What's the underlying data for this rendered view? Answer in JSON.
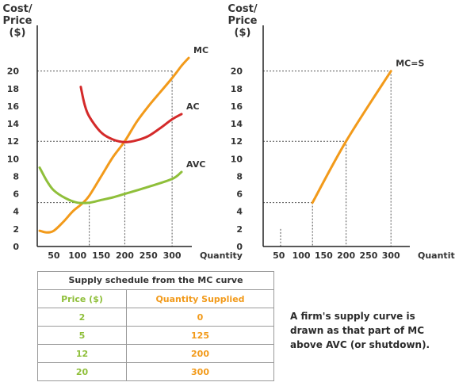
{
  "chart_data": [
    {
      "type": "line",
      "ylabel_lines": [
        "Cost/",
        "Price",
        "($)"
      ],
      "xlabel": "Quantity",
      "yticks": [
        0,
        2,
        4,
        6,
        8,
        10,
        12,
        14,
        16,
        18,
        20
      ],
      "xticks": [
        50,
        100,
        150,
        200,
        250,
        300
      ],
      "xlim": [
        15,
        335
      ],
      "ylim": [
        0,
        22.5
      ],
      "series": [
        {
          "name": "MC",
          "color": "#f29a1a",
          "points": [
            [
              20,
              1.8
            ],
            [
              35,
              1.6
            ],
            [
              50,
              1.8
            ],
            [
              70,
              2.8
            ],
            [
              90,
              4.0
            ],
            [
              110,
              4.9
            ],
            [
              125,
              5.8
            ],
            [
              150,
              8.0
            ],
            [
              175,
              10.2
            ],
            [
              200,
              12.0
            ],
            [
              225,
              14.2
            ],
            [
              250,
              16.0
            ],
            [
              275,
              17.6
            ],
            [
              300,
              19.2
            ],
            [
              320,
              20.6
            ],
            [
              335,
              21.5
            ]
          ]
        },
        {
          "name": "AC",
          "color": "#d42a2a",
          "points": [
            [
              107,
              18.2
            ],
            [
              115,
              16.2
            ],
            [
              125,
              14.8
            ],
            [
              150,
              13.0
            ],
            [
              175,
              12.2
            ],
            [
              200,
              11.9
            ],
            [
              225,
              12.1
            ],
            [
              250,
              12.6
            ],
            [
              275,
              13.5
            ],
            [
              300,
              14.5
            ],
            [
              320,
              15.1
            ]
          ]
        },
        {
          "name": "AVC",
          "color": "#8fbf3a",
          "points": [
            [
              20,
              9.0
            ],
            [
              35,
              7.5
            ],
            [
              50,
              6.4
            ],
            [
              75,
              5.5
            ],
            [
              100,
              5.0
            ],
            [
              125,
              5.0
            ],
            [
              150,
              5.3
            ],
            [
              175,
              5.6
            ],
            [
              200,
              6.0
            ],
            [
              250,
              6.8
            ],
            [
              300,
              7.7
            ],
            [
              320,
              8.5
            ]
          ]
        }
      ],
      "guides": [
        {
          "x": 125,
          "y": 5
        },
        {
          "x": 200,
          "y": 12
        },
        {
          "x": 300,
          "y": 20
        }
      ]
    },
    {
      "type": "line",
      "ylabel_lines": [
        "Cost/",
        "Price",
        "($)"
      ],
      "xlabel": "Quantity",
      "yticks": [
        0,
        2,
        4,
        6,
        8,
        10,
        12,
        14,
        16,
        18,
        20
      ],
      "xticks": [
        50,
        100,
        150,
        200,
        250,
        300
      ],
      "xlim": [
        15,
        335
      ],
      "ylim": [
        0,
        22.5
      ],
      "series": [
        {
          "name": "MC=S",
          "color": "#f29a1a",
          "points": [
            [
              125,
              5
            ],
            [
              200,
              12
            ],
            [
              300,
              20
            ]
          ]
        }
      ],
      "guides": [
        {
          "x": 0,
          "y": 2
        },
        {
          "x": 125,
          "y": 5
        },
        {
          "x": 200,
          "y": 12
        },
        {
          "x": 300,
          "y": 20
        }
      ]
    }
  ],
  "table": {
    "title": "Supply schedule from the MC curve",
    "headers": [
      "Price ($)",
      "Quantity Supplied"
    ],
    "rows": [
      [
        "2",
        "0"
      ],
      [
        "5",
        "125"
      ],
      [
        "12",
        "200"
      ],
      [
        "20",
        "300"
      ]
    ]
  },
  "note": "A firm's supply curve is drawn as that part of MC above AVC (or shutdown)."
}
